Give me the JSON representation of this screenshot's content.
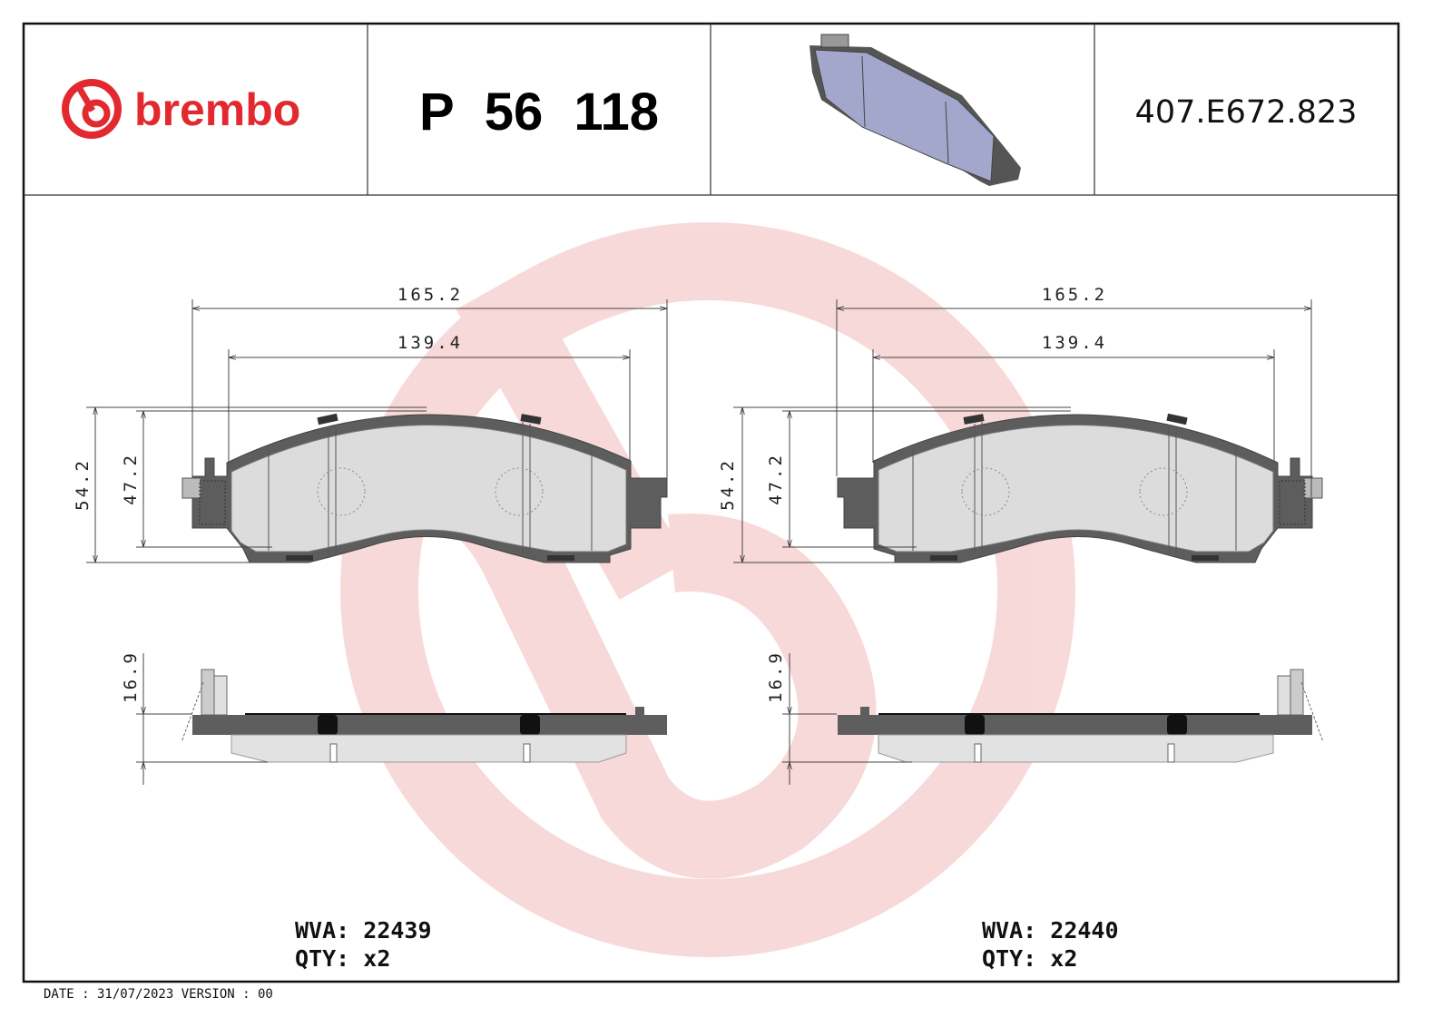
{
  "header": {
    "brand": "brembo",
    "part_number": "P 56 118",
    "reference": "407.E672.823",
    "brand_color": "#e2292f"
  },
  "drawing": {
    "left": {
      "width_total": "165.2",
      "width_inner": "139.4",
      "height_total": "54.2",
      "height_inner": "47.2",
      "thickness": "16.9"
    },
    "right": {
      "width_total": "165.2",
      "width_inner": "139.4",
      "height_total": "54.2",
      "height_inner": "47.2",
      "thickness": "16.9"
    }
  },
  "info": {
    "left": {
      "wva_label": "WVA:",
      "wva": "22439",
      "qty_label": "QTY:",
      "qty": "x2"
    },
    "right": {
      "wva_label": "WVA:",
      "wva": "22440",
      "qty_label": "QTY:",
      "qty": "x2"
    }
  },
  "footer": {
    "text": "DATE : 31/07/2023 VERSION : 00"
  },
  "watermark": {
    "icon": "brembo-logo-watermark",
    "color": "#f7d3d3"
  }
}
